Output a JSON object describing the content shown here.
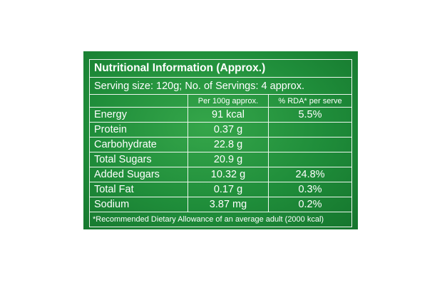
{
  "table": {
    "title": "Nutritional Information (Approx.)",
    "serving": "Serving size: 120g; No. of Servings: 4 approx.",
    "col_per100g": "Per 100g approx.",
    "col_rda": "% RDA* per serve",
    "rows": [
      {
        "name": "Energy",
        "per100g": "91 kcal",
        "rda": "5.5%"
      },
      {
        "name": "Protein",
        "per100g": "0.37 g",
        "rda": ""
      },
      {
        "name": "Carbohydrate",
        "per100g": "22.8 g",
        "rda": ""
      },
      {
        "name": "Total Sugars",
        "per100g": "20.9 g",
        "rda": ""
      },
      {
        "name": "Added Sugars",
        "per100g": "10.32 g",
        "rda": "24.8%"
      },
      {
        "name": "Total Fat",
        "per100g": "0.17 g",
        "rda": "0.3%"
      },
      {
        "name": "Sodium",
        "per100g": "3.87 mg",
        "rda": "0.2%"
      }
    ],
    "footnote": "*Recommended Dietary Allowance of an average adult (2000 kcal)"
  },
  "colors": {
    "panel_green": "#1f8d3a",
    "highlight_green": "#35a64a",
    "text": "#ffffff"
  }
}
